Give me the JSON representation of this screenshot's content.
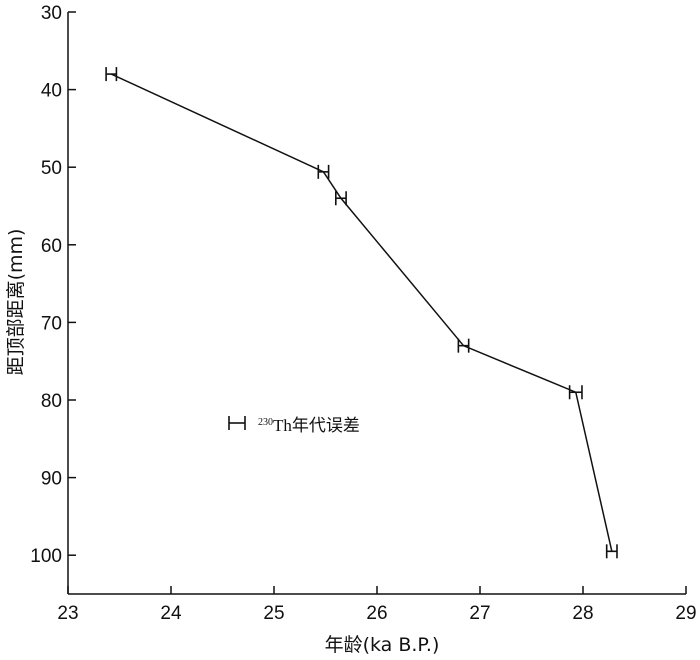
{
  "chart_data": {
    "type": "line",
    "xlabel": "年龄(ka B.P.)",
    "ylabel": "距顶部距离(mm)",
    "xlim": [
      23,
      29
    ],
    "ylim": [
      30,
      105
    ],
    "y_inverted": true,
    "x_ticks": [
      23,
      24,
      25,
      26,
      27,
      28,
      29
    ],
    "y_ticks": [
      30,
      40,
      50,
      60,
      70,
      80,
      90,
      100
    ],
    "grid": false,
    "series": [
      {
        "points": [
          {
            "x": 23.42,
            "y": 38.0,
            "err": 0.05
          },
          {
            "x": 25.48,
            "y": 50.6,
            "err": 0.05
          },
          {
            "x": 25.65,
            "y": 54.0,
            "err": 0.05
          },
          {
            "x": 26.84,
            "y": 73.0,
            "err": 0.05
          },
          {
            "x": 27.93,
            "y": 79.0,
            "err": 0.06
          },
          {
            "x": 28.28,
            "y": 99.5,
            "err": 0.05
          }
        ]
      }
    ],
    "legend": {
      "label_sup": "230",
      "label_main": "Th年代误差",
      "placement": "center-left"
    }
  }
}
